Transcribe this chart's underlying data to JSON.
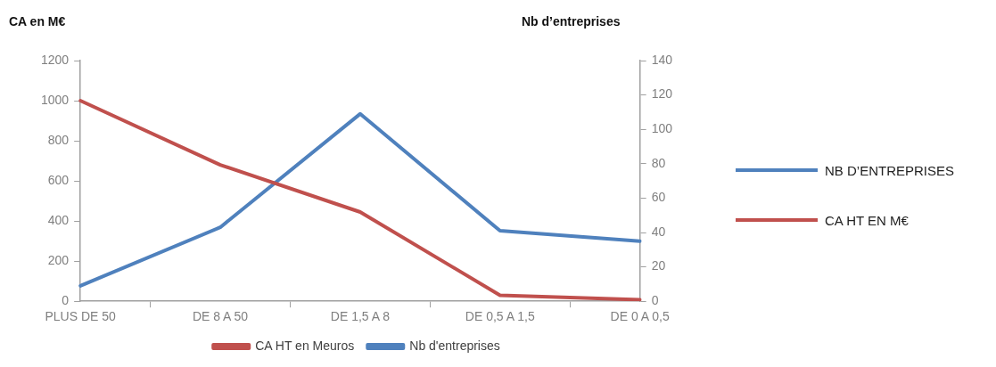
{
  "chart_data": {
    "type": "line",
    "ylabel": "CA en M€",
    "y2label": "Nb d’entreprises",
    "categories": [
      "PLUS DE 50",
      "DE 8 A 50",
      "DE 1,5 A 8",
      "DE 0,5 A 1,5",
      "DE 0 A 0,5"
    ],
    "series": [
      {
        "name": "CA HT en Meuros",
        "color": "#c0504d",
        "values": [
          1000,
          680,
          445,
          30,
          8
        ]
      },
      {
        "name": "Nb d'entreprises",
        "color": "#4f81bd",
        "axis": "y2",
        "values": [
          9,
          43,
          109,
          41,
          35
        ]
      }
    ],
    "ylim": [
      0,
      1200
    ],
    "yticks": [
      0,
      200,
      400,
      600,
      800,
      1000,
      1200
    ],
    "y2lim": [
      0,
      140
    ],
    "y2ticks": [
      0,
      20,
      40,
      60,
      80,
      100,
      120,
      140
    ],
    "annotations": [
      "NB D’ENTREPRISES",
      "CA HT EN M€"
    ],
    "grid": false,
    "legend": "bottom",
    "marker": "none",
    "line_style": "solid"
  }
}
